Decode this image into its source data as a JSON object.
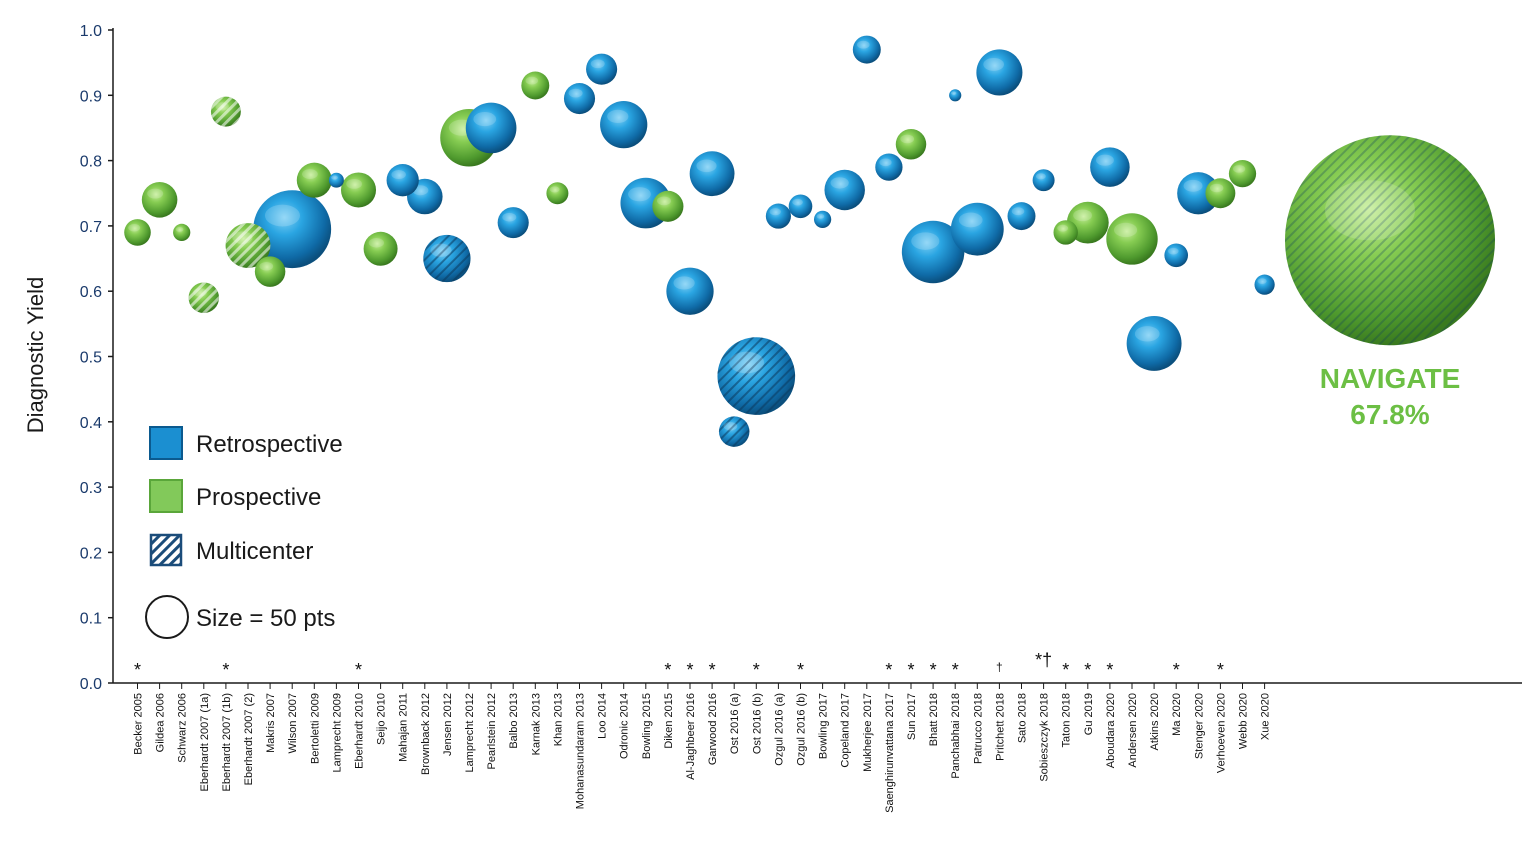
{
  "chart_data": {
    "type": "scatter",
    "subtype": "bubble",
    "title": "",
    "xlabel": "",
    "ylabel": "Diagnostic Yield",
    "ylim": [
      0.0,
      1.0
    ],
    "yticks": [
      "0.0",
      "0.1",
      "0.2",
      "0.3",
      "0.4",
      "0.5",
      "0.6",
      "0.7",
      "0.8",
      "0.9",
      "1.0"
    ],
    "grid": false,
    "colors": {
      "retrospective": "#1b8fd1",
      "prospective": "#6cbf44",
      "navigate": "#6cbf44",
      "legend_multicenter": "#1b4c7a"
    },
    "categories": [
      {
        "label": "Becker 2005",
        "mark": "*"
      },
      {
        "label": "Gildea 2006",
        "mark": ""
      },
      {
        "label": "Schwarz 2006",
        "mark": ""
      },
      {
        "label": "Eberhardt 2007 (1a)",
        "mark": ""
      },
      {
        "label": "Eberhardt 2007 (1b)",
        "mark": "*"
      },
      {
        "label": "Eberhardt 2007 (2)",
        "mark": ""
      },
      {
        "label": "Makris 2007",
        "mark": ""
      },
      {
        "label": "Wilson 2007",
        "mark": ""
      },
      {
        "label": "Bertoletti 2009",
        "mark": ""
      },
      {
        "label": "Lamprecht 2009",
        "mark": ""
      },
      {
        "label": "Eberhardt 2010",
        "mark": "*"
      },
      {
        "label": "Seijo 2010",
        "mark": ""
      },
      {
        "label": "Mahajan 2011",
        "mark": ""
      },
      {
        "label": "Brownback 2012",
        "mark": ""
      },
      {
        "label": "Jensen 2012",
        "mark": ""
      },
      {
        "label": "Lamprecht 2012",
        "mark": ""
      },
      {
        "label": "Pearlstein 2012",
        "mark": ""
      },
      {
        "label": "Balbo 2013",
        "mark": ""
      },
      {
        "label": "Karnak 2013",
        "mark": ""
      },
      {
        "label": "Khan 2013",
        "mark": ""
      },
      {
        "label": "Mohanasundaram 2013",
        "mark": ""
      },
      {
        "label": "Loo 2014",
        "mark": ""
      },
      {
        "label": "Odronic 2014",
        "mark": ""
      },
      {
        "label": "Bowling 2015",
        "mark": ""
      },
      {
        "label": "Diken 2015",
        "mark": "*"
      },
      {
        "label": "Al-Jaghbeer 2016",
        "mark": "*"
      },
      {
        "label": "Garwood 2016",
        "mark": "*"
      },
      {
        "label": "Ost 2016 (a)",
        "mark": ""
      },
      {
        "label": "Ost 2016 (b)",
        "mark": "*"
      },
      {
        "label": "Ozgul 2016 (a)",
        "mark": ""
      },
      {
        "label": "Ozgul 2016 (b)",
        "mark": "*"
      },
      {
        "label": "Bowling 2017",
        "mark": ""
      },
      {
        "label": "Copeland 2017",
        "mark": ""
      },
      {
        "label": "Mukherjee 2017",
        "mark": ""
      },
      {
        "label": "Saenghirunvattana 2017",
        "mark": "*"
      },
      {
        "label": "Sun 2017",
        "mark": "*"
      },
      {
        "label": "Bhatt 2018",
        "mark": "*"
      },
      {
        "label": "Panchabhai 2018",
        "mark": "*"
      },
      {
        "label": "Patrucco 2018",
        "mark": ""
      },
      {
        "label": "Pritchett 2018",
        "mark": "†"
      },
      {
        "label": "Sato 2018",
        "mark": ""
      },
      {
        "label": "Sobieszczyk 2018",
        "mark": "*†"
      },
      {
        "label": "Taton 2018",
        "mark": "*"
      },
      {
        "label": "Gu 2019",
        "mark": "*"
      },
      {
        "label": "Aboudara 2020",
        "mark": "*"
      },
      {
        "label": "Andersen 2020",
        "mark": ""
      },
      {
        "label": "Atkins 2020",
        "mark": ""
      },
      {
        "label": "Ma 2020",
        "mark": "*"
      },
      {
        "label": "Stenger 2020",
        "mark": ""
      },
      {
        "label": "Verhoeven 2020",
        "mark": "*"
      },
      {
        "label": "Webb 2020",
        "mark": ""
      },
      {
        "label": "Xue 2020",
        "mark": ""
      }
    ],
    "series": [
      {
        "study": "Becker 2005",
        "x": 0,
        "y": 0.69,
        "design": "prospective",
        "multicenter": false,
        "n": 19
      },
      {
        "study": "Gildea 2006",
        "x": 1,
        "y": 0.74,
        "design": "prospective",
        "multicenter": false,
        "n": 34
      },
      {
        "study": "Schwarz 2006",
        "x": 2,
        "y": 0.69,
        "design": "prospective",
        "multicenter": false,
        "n": 8
      },
      {
        "study": "Eberhardt 2007 (1a)",
        "x": 3,
        "y": 0.59,
        "design": "prospective",
        "multicenter": true,
        "n": 25
      },
      {
        "study": "Eberhardt 2007 (1b)",
        "x": 4,
        "y": 0.875,
        "design": "prospective",
        "multicenter": true,
        "n": 24
      },
      {
        "study": "Eberhardt 2007 (2)",
        "x": 5,
        "y": 0.67,
        "design": "prospective",
        "multicenter": true,
        "n": 54
      },
      {
        "study": "Makris 2007",
        "x": 6,
        "y": 0.63,
        "design": "prospective",
        "multicenter": false,
        "n": 25
      },
      {
        "study": "Wilson 2007",
        "x": 7,
        "y": 0.695,
        "design": "retrospective",
        "multicenter": false,
        "n": 163
      },
      {
        "study": "Bertoletti 2009",
        "x": 8,
        "y": 0.77,
        "design": "prospective",
        "multicenter": false,
        "n": 33
      },
      {
        "study": "Lamprecht 2009",
        "x": 9,
        "y": 0.77,
        "design": "retrospective",
        "multicenter": false,
        "n": 6
      },
      {
        "study": "Eberhardt 2010",
        "x": 10,
        "y": 0.755,
        "design": "prospective",
        "multicenter": false,
        "n": 33
      },
      {
        "study": "Seijo 2010",
        "x": 11,
        "y": 0.665,
        "design": "prospective",
        "multicenter": false,
        "n": 31
      },
      {
        "study": "Mahajan 2011",
        "x": 12,
        "y": 0.77,
        "design": "retrospective",
        "multicenter": false,
        "n": 28
      },
      {
        "study": "Brownback 2012",
        "x": 13,
        "y": 0.745,
        "design": "retrospective",
        "multicenter": false,
        "n": 34
      },
      {
        "study": "Jensen 2012",
        "x": 14,
        "y": 0.65,
        "design": "retrospective",
        "multicenter": true,
        "n": 60
      },
      {
        "study": "Lamprecht 2012",
        "x": 15,
        "y": 0.835,
        "design": "prospective",
        "multicenter": false,
        "n": 89
      },
      {
        "study": "Pearlstein 2012",
        "x": 16,
        "y": 0.85,
        "design": "retrospective",
        "multicenter": false,
        "n": 69
      },
      {
        "study": "Balbo 2013",
        "x": 17,
        "y": 0.705,
        "design": "retrospective",
        "multicenter": false,
        "n": 26
      },
      {
        "study": "Karnak 2013",
        "x": 18,
        "y": 0.915,
        "design": "prospective",
        "multicenter": false,
        "n": 21
      },
      {
        "study": "Khan 2013",
        "x": 19,
        "y": 0.75,
        "design": "prospective",
        "multicenter": false,
        "n": 13
      },
      {
        "study": "Mohanasundaram 2013",
        "x": 20,
        "y": 0.895,
        "design": "retrospective",
        "multicenter": false,
        "n": 26
      },
      {
        "study": "Loo 2014",
        "x": 21,
        "y": 0.94,
        "design": "retrospective",
        "multicenter": false,
        "n": 26
      },
      {
        "study": "Odronic 2014",
        "x": 22,
        "y": 0.855,
        "design": "retrospective",
        "multicenter": false,
        "n": 60
      },
      {
        "study": "Bowling 2015",
        "x": 23,
        "y": 0.735,
        "design": "retrospective",
        "multicenter": false,
        "n": 69
      },
      {
        "study": "Diken 2015",
        "x": 24,
        "y": 0.73,
        "design": "prospective",
        "multicenter": false,
        "n": 26
      },
      {
        "study": "Al-Jaghbeer 2016",
        "x": 25,
        "y": 0.6,
        "design": "retrospective",
        "multicenter": false,
        "n": 60
      },
      {
        "study": "Garwood 2016",
        "x": 26,
        "y": 0.78,
        "design": "retrospective",
        "multicenter": false,
        "n": 54
      },
      {
        "study": "Ost 2016 (a)",
        "x": 27,
        "y": 0.385,
        "design": "retrospective",
        "multicenter": true,
        "n": 25
      },
      {
        "study": "Ost 2016 (b)",
        "x": 28,
        "y": 0.47,
        "design": "retrospective",
        "multicenter": true,
        "n": 162
      },
      {
        "study": "Ozgul 2016 (a)",
        "x": 29,
        "y": 0.715,
        "design": "retrospective",
        "multicenter": false,
        "n": 17
      },
      {
        "study": "Ozgul 2016 (b)",
        "x": 30,
        "y": 0.73,
        "design": "retrospective",
        "multicenter": false,
        "n": 15
      },
      {
        "study": "Bowling 2017",
        "x": 31,
        "y": 0.71,
        "design": "retrospective",
        "multicenter": false,
        "n": 8
      },
      {
        "study": "Copeland 2017",
        "x": 32,
        "y": 0.755,
        "design": "retrospective",
        "multicenter": false,
        "n": 44
      },
      {
        "study": "Mukherjee 2017",
        "x": 33,
        "y": 0.97,
        "design": "retrospective",
        "multicenter": false,
        "n": 21
      },
      {
        "study": "Saenghirunvattana 2017",
        "x": 34,
        "y": 0.79,
        "design": "retrospective",
        "multicenter": false,
        "n": 20
      },
      {
        "study": "Sun 2017",
        "x": 35,
        "y": 0.825,
        "design": "prospective",
        "multicenter": false,
        "n": 25
      },
      {
        "study": "Bhatt 2018",
        "x": 36,
        "y": 0.66,
        "design": "retrospective",
        "multicenter": false,
        "n": 105
      },
      {
        "study": "Panchabhai 2018",
        "x": 37,
        "y": 0.9,
        "design": "retrospective",
        "multicenter": false,
        "n": 4
      },
      {
        "study": "Patrucco 2018",
        "x": 38,
        "y": 0.695,
        "design": "retrospective",
        "multicenter": false,
        "n": 75
      },
      {
        "study": "Pritchett 2018",
        "x": 39,
        "y": 0.935,
        "design": "retrospective",
        "multicenter": false,
        "n": 57
      },
      {
        "study": "Sato 2018",
        "x": 40,
        "y": 0.715,
        "design": "retrospective",
        "multicenter": false,
        "n": 21
      },
      {
        "study": "Sobieszczyk 2018",
        "x": 41,
        "y": 0.77,
        "design": "retrospective",
        "multicenter": false,
        "n": 13
      },
      {
        "study": "Taton 2018",
        "x": 42,
        "y": 0.69,
        "design": "prospective",
        "multicenter": false,
        "n": 16
      },
      {
        "study": "Gu 2019",
        "x": 43,
        "y": 0.705,
        "design": "prospective",
        "multicenter": false,
        "n": 47
      },
      {
        "study": "Aboudara 2020",
        "x": 44,
        "y": 0.79,
        "design": "retrospective",
        "multicenter": false,
        "n": 42
      },
      {
        "study": "Andersen 2020",
        "x": 45,
        "y": 0.68,
        "design": "prospective",
        "multicenter": false,
        "n": 71
      },
      {
        "study": "Atkins 2020",
        "x": 46,
        "y": 0.52,
        "design": "retrospective",
        "multicenter": false,
        "n": 81
      },
      {
        "study": "Ma 2020",
        "x": 47,
        "y": 0.655,
        "design": "retrospective",
        "multicenter": false,
        "n": 15
      },
      {
        "study": "Stenger 2020",
        "x": 48,
        "y": 0.75,
        "design": "retrospective",
        "multicenter": false,
        "n": 48
      },
      {
        "study": "Verhoeven 2020",
        "x": 49,
        "y": 0.75,
        "design": "prospective",
        "multicenter": false,
        "n": 24
      },
      {
        "study": "Webb 2020",
        "x": 50,
        "y": 0.78,
        "design": "prospective",
        "multicenter": false,
        "n": 20
      },
      {
        "study": "Xue 2020",
        "x": 51,
        "y": 0.61,
        "design": "retrospective",
        "multicenter": false,
        "n": 11
      }
    ],
    "navigate": {
      "label": "NAVIGATE",
      "value_text": "67.8%",
      "y": 0.678,
      "design": "prospective",
      "multicenter": true,
      "n": 1000
    },
    "legend": {
      "position": "bottom-left",
      "items": [
        {
          "label": "Retrospective",
          "kind": "retrospective"
        },
        {
          "label": "Prospective",
          "kind": "prospective"
        },
        {
          "label": "Multicenter",
          "kind": "multicenter"
        },
        {
          "label": "Size = 50 pts",
          "kind": "size",
          "n": 50
        }
      ]
    }
  }
}
